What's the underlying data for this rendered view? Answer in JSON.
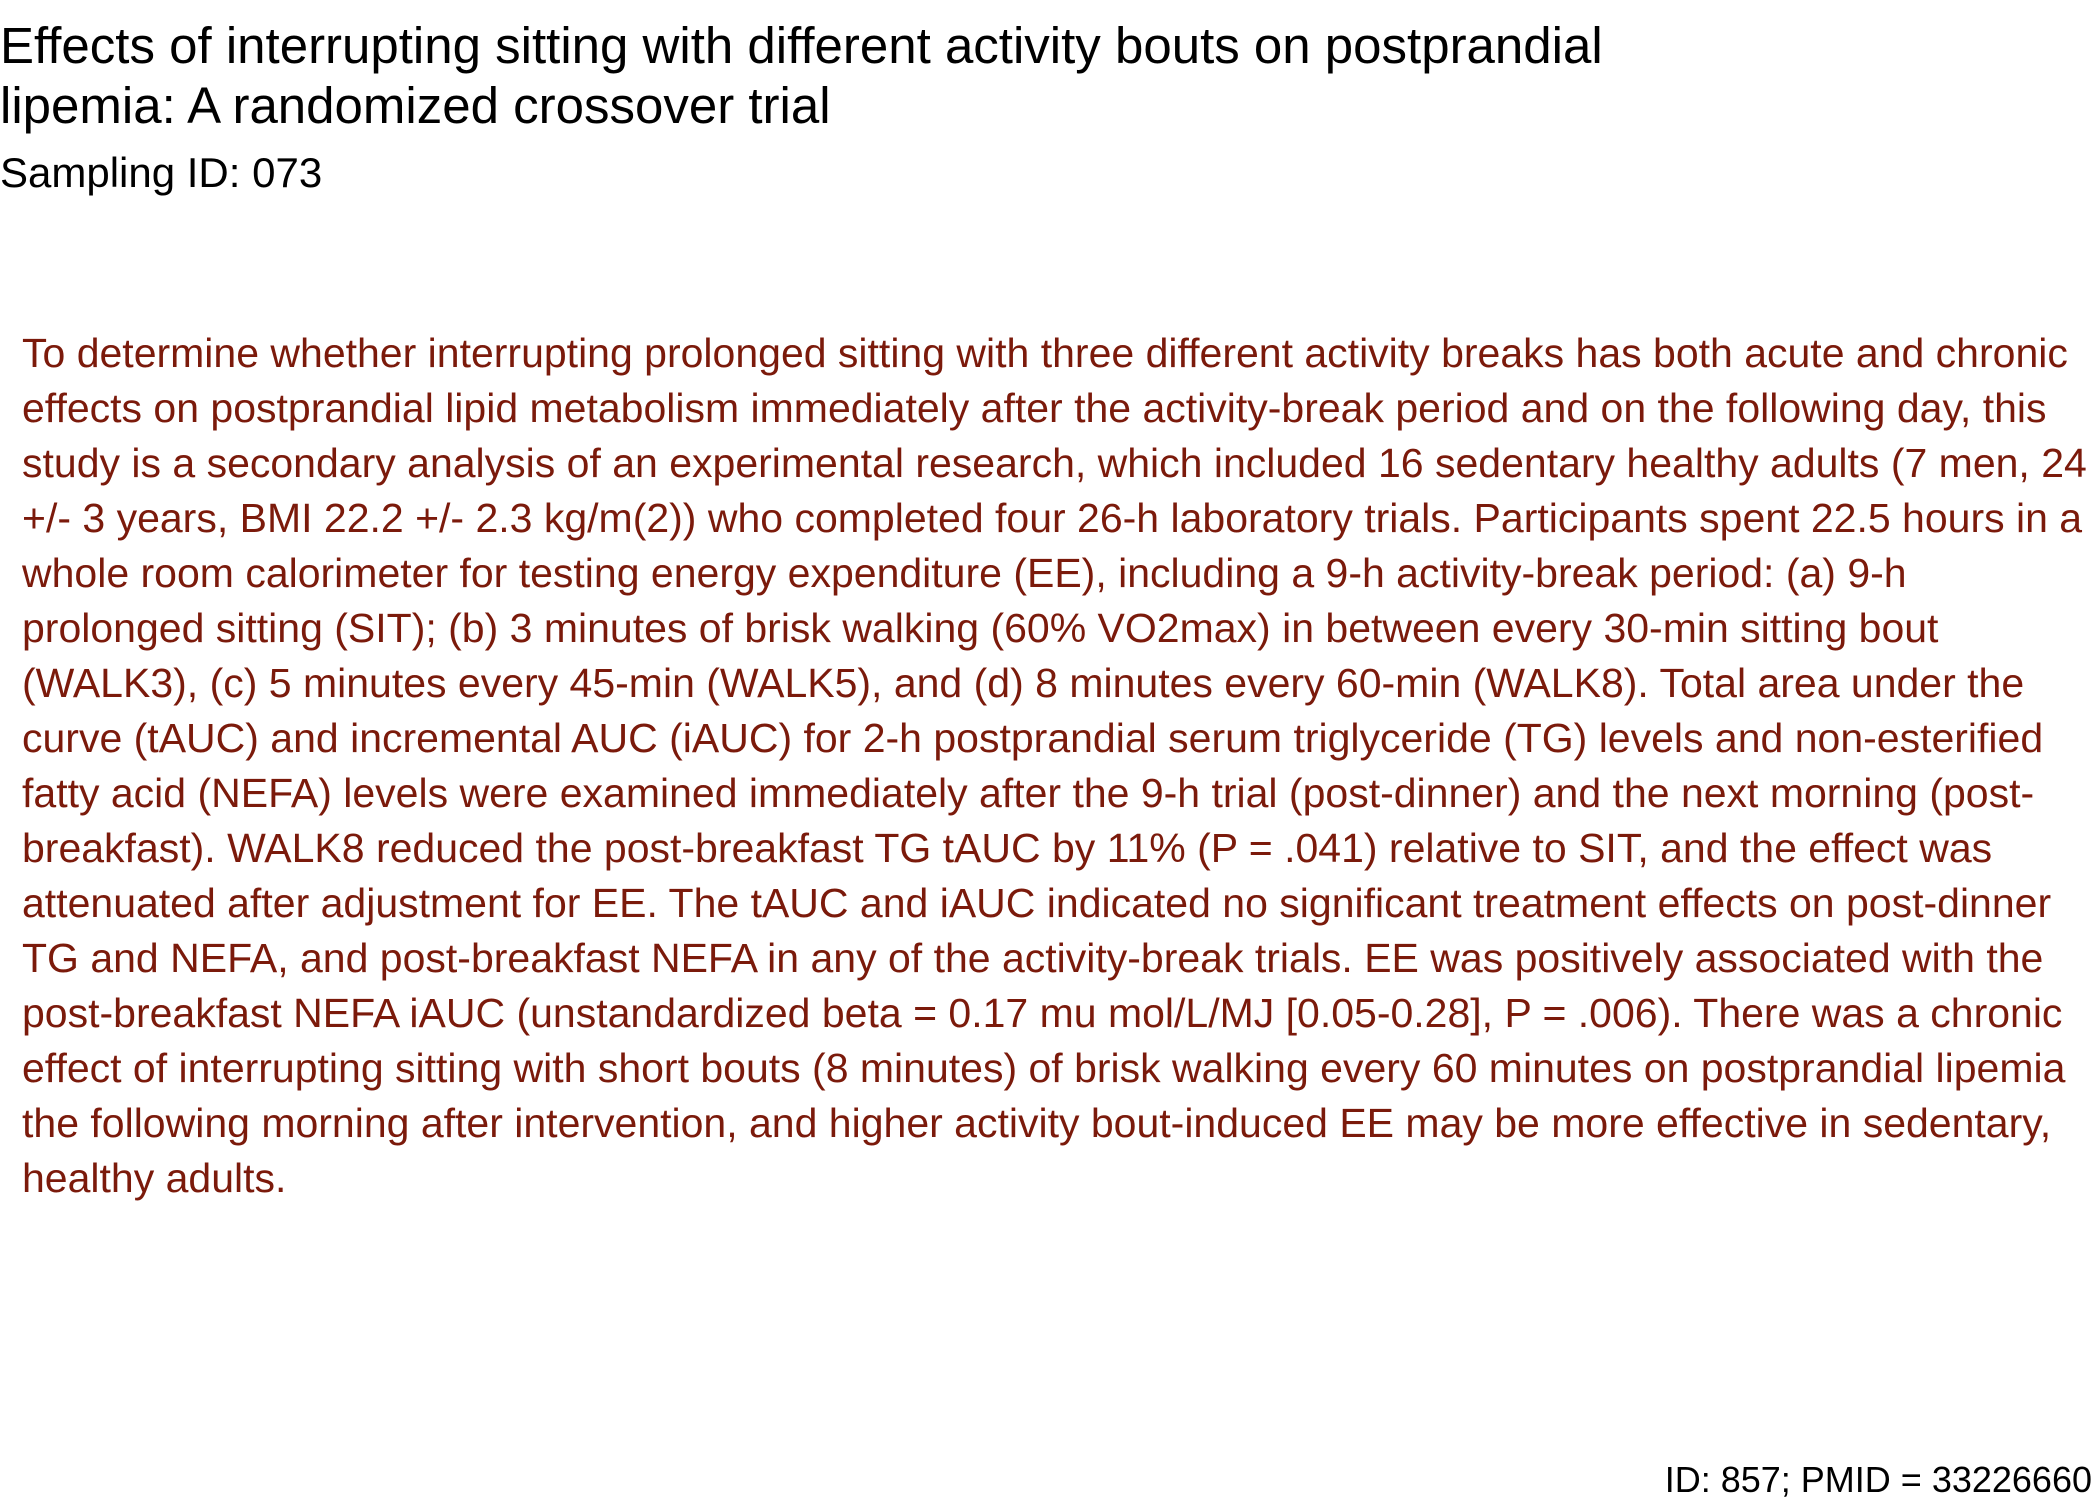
{
  "document": {
    "title": "Effects of interrupting sitting with different activity bouts on postprandial lipemia: A randomized crossover trial",
    "sampling_id": "Sampling ID: 073",
    "abstract": "To determine whether interrupting prolonged sitting with three different activity breaks has both acute and chronic effects on postprandial lipid metabolism immediately after the activity-break period and on the following day, this study is a secondary analysis of an experimental research, which included 16 sedentary healthy adults (7 men, 24 +/- 3 years, BMI 22.2 +/- 2.3 kg/m(2)) who completed four 26-h laboratory trials. Participants spent 22.5 hours in a whole room calorimeter for testing energy expenditure (EE), including a 9-h activity-break period: (a) 9-h prolonged sitting (SIT); (b) 3 minutes of brisk walking (60% VO2max) in between every 30-min sitting bout (WALK3), (c) 5 minutes every 45-min (WALK5), and (d) 8 minutes every 60-min (WALK8). Total area under the curve (tAUC) and incremental AUC (iAUC) for 2-h postprandial serum triglyceride (TG) levels and non-esterified fatty acid (NEFA) levels were examined immediately after the 9-h trial (post-dinner) and the next morning (post-breakfast). WALK8 reduced the post-breakfast TG tAUC by 11% (P = .041) relative to SIT, and the effect was attenuated after adjustment for EE. The tAUC and iAUC indicated no significant treatment effects on post-dinner TG and NEFA, and post-breakfast NEFA in any of the activity-break trials. EE was positively associated with the post-breakfast NEFA iAUC (unstandardized beta = 0.17 mu mol/L/MJ [0.05-0.28], P = .006). There was a chronic effect of interrupting sitting with short bouts (8 minutes) of brisk walking every 60 minutes on postprandial lipemia the following morning after intervention, and higher activity bout-induced EE may be more effective in sedentary, healthy adults.",
    "footer": "ID: 857; PMID = 33226660"
  },
  "colors": {
    "title_text": "#000000",
    "abstract_text": "#7b1a0b",
    "background": "#ffffff"
  }
}
